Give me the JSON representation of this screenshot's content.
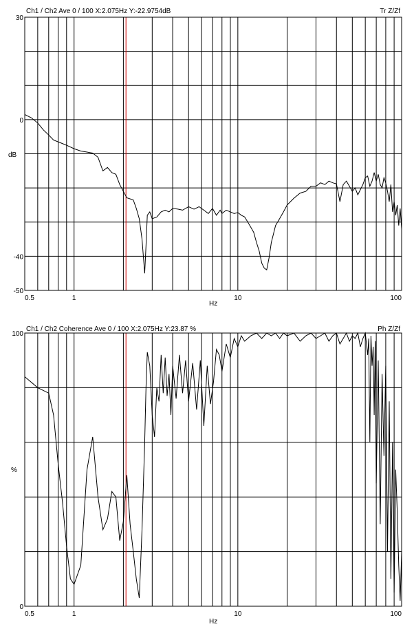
{
  "chart_data": [
    {
      "type": "line",
      "header": "Ch1 / Ch2  Ave 0 / 100  X:2.075Hz  Y:-22.9754dB",
      "header_right": "Tr Z/Zf",
      "xlabel": "Hz",
      "ylabel": "dB",
      "x_scale": "log",
      "xlim": [
        0.5,
        100
      ],
      "ylim": [
        -50,
        30
      ],
      "x_tick_labels": [
        "0.5",
        "1",
        "10",
        "100"
      ],
      "y_tick_labels": [
        "30",
        "0",
        "-40",
        "-50"
      ],
      "grid": true,
      "cursor": {
        "x": 2.075,
        "color": "#cc0000"
      },
      "line_color": "#000000",
      "x": [
        0.5,
        0.55,
        0.6,
        0.65,
        0.7,
        0.75,
        0.8,
        0.9,
        1.0,
        1.1,
        1.2,
        1.3,
        1.4,
        1.5,
        1.6,
        1.7,
        1.8,
        1.9,
        2.0,
        2.1,
        2.3,
        2.4,
        2.5,
        2.6,
        2.7,
        2.75,
        2.8,
        2.9,
        3.0,
        3.2,
        3.4,
        3.6,
        3.8,
        4.0,
        4.3,
        4.6,
        5.0,
        5.4,
        5.8,
        6.2,
        6.6,
        7.0,
        7.4,
        7.8,
        8.0,
        8.5,
        9.0,
        9.5,
        10.0,
        10.5,
        11.0,
        11.5,
        12.0,
        12.5,
        13.0,
        13.5,
        14.0,
        14.5,
        15.0,
        15.5,
        16.0,
        17.0,
        18.0,
        19.0,
        20.0,
        22.0,
        24.0,
        26.0,
        28.0,
        30.0,
        32.0,
        34.0,
        36.0,
        38.0,
        40.0,
        42.0,
        44.0,
        46.0,
        48.0,
        50.0,
        52.0,
        54.0,
        56.0,
        58.0,
        60.0,
        62.0,
        64.0,
        66.0,
        68.0,
        70.0,
        72.0,
        74.0,
        76.0,
        78.0,
        80.0,
        82.0,
        84.0,
        86.0,
        88.0,
        90.0,
        92.0,
        94.0,
        96.0,
        98.0,
        100.0
      ],
      "y": [
        1.5,
        0.5,
        -1.0,
        -3.0,
        -4.5,
        -6.0,
        -6.5,
        -7.5,
        -8.5,
        -9.2,
        -9.5,
        -9.8,
        -11.0,
        -15.0,
        -14.0,
        -15.5,
        -16.0,
        -19.0,
        -21.0,
        -22.9,
        -23.5,
        -26.0,
        -29.0,
        -35.0,
        -45.0,
        -37.0,
        -28.0,
        -27.0,
        -29.0,
        -28.5,
        -27.0,
        -26.5,
        -27.0,
        -26.0,
        -26.2,
        -26.5,
        -25.5,
        -26.2,
        -25.5,
        -26.5,
        -27.5,
        -26.0,
        -28.0,
        -26.5,
        -27.5,
        -26.5,
        -27.0,
        -27.5,
        -27.2,
        -28.0,
        -28.5,
        -30.0,
        -31.5,
        -33.0,
        -36.0,
        -38.5,
        -42.0,
        -43.5,
        -44.0,
        -40.5,
        -36.0,
        -31.0,
        -29.0,
        -27.0,
        -25.0,
        -23.0,
        -21.5,
        -21.0,
        -19.5,
        -19.5,
        -18.5,
        -19.0,
        -18.0,
        -18.5,
        -18.8,
        -24.0,
        -19.0,
        -18.0,
        -19.5,
        -21.0,
        -20.0,
        -22.0,
        -20.5,
        -19.0,
        -17.0,
        -16.5,
        -19.5,
        -18.0,
        -15.5,
        -18.0,
        -16.0,
        -19.0,
        -20.0,
        -17.0,
        -18.5,
        -21.0,
        -24.0,
        -19.0,
        -27.0,
        -24.0,
        -28.0,
        -25.0,
        -31.0,
        -26.0,
        -32.0
      ]
    },
    {
      "type": "line",
      "header": "Ch1 / Ch2  Coherence Ave 0 / 100  X:2.075Hz  Y:23.87 %",
      "header_right": "Ph Z/Zf",
      "xlabel": "Hz",
      "ylabel": "%",
      "x_scale": "log",
      "xlim": [
        0.5,
        100
      ],
      "ylim": [
        0,
        100
      ],
      "x_tick_labels": [
        "0.5",
        "1",
        "10",
        "100"
      ],
      "y_tick_labels": [
        "100",
        "0"
      ],
      "grid": true,
      "cursor": {
        "x": 2.075,
        "color": "#cc0000"
      },
      "line_color": "#000000",
      "x": [
        0.5,
        0.6,
        0.7,
        0.75,
        0.8,
        0.85,
        0.9,
        0.95,
        1.0,
        1.1,
        1.2,
        1.3,
        1.4,
        1.5,
        1.6,
        1.7,
        1.8,
        1.9,
        2.0,
        2.1,
        2.2,
        2.3,
        2.4,
        2.5,
        2.6,
        2.7,
        2.75,
        2.8,
        2.9,
        3.0,
        3.1,
        3.2,
        3.3,
        3.4,
        3.5,
        3.6,
        3.7,
        3.8,
        3.9,
        4.0,
        4.2,
        4.4,
        4.6,
        4.8,
        5.0,
        5.3,
        5.6,
        5.9,
        6.2,
        6.5,
        6.8,
        7.1,
        7.4,
        7.7,
        8.0,
        8.5,
        9.0,
        9.5,
        10.0,
        10.5,
        11.0,
        12.0,
        13.0,
        14.0,
        15.0,
        16.0,
        17.0,
        18.0,
        19.0,
        20.0,
        22.0,
        24.0,
        26.0,
        28.0,
        30.0,
        32.0,
        34.0,
        36.0,
        38.0,
        40.0,
        42.0,
        44.0,
        46.0,
        48.0,
        50.0,
        52.0,
        54.0,
        56.0,
        58.0,
        60.0,
        62.0,
        63.0,
        64.0,
        65.0,
        66.0,
        67.0,
        68.0,
        69.0,
        70.0,
        72.0,
        74.0,
        76.0,
        78.0,
        80.0,
        82.0,
        84.0,
        86.0,
        88.0,
        90.0,
        92.0,
        94.0,
        96.0,
        98.0,
        100.0
      ],
      "y": [
        84,
        80,
        78,
        70,
        52,
        38,
        22,
        10,
        8,
        15,
        50,
        62,
        40,
        28,
        32,
        42,
        40,
        24,
        31,
        48,
        30,
        20,
        10,
        3,
        28,
        60,
        80,
        93,
        88,
        70,
        62,
        80,
        75,
        92,
        78,
        91,
        77,
        85,
        70,
        88,
        76,
        92,
        78,
        90,
        75,
        89,
        72,
        90,
        66,
        88,
        74,
        82,
        94,
        92,
        86,
        96,
        91,
        98,
        95,
        99,
        97,
        99,
        100,
        98,
        100,
        99,
        100,
        98,
        100,
        99,
        100,
        97,
        99,
        100,
        98,
        99,
        100,
        97,
        99,
        100,
        96,
        98,
        100,
        97,
        99,
        98,
        100,
        95,
        98,
        100,
        92,
        98,
        60,
        99,
        88,
        95,
        70,
        97,
        45,
        90,
        30,
        85,
        55,
        88,
        20,
        75,
        10,
        60,
        5,
        50,
        35,
        15,
        2,
        20
      ]
    }
  ]
}
